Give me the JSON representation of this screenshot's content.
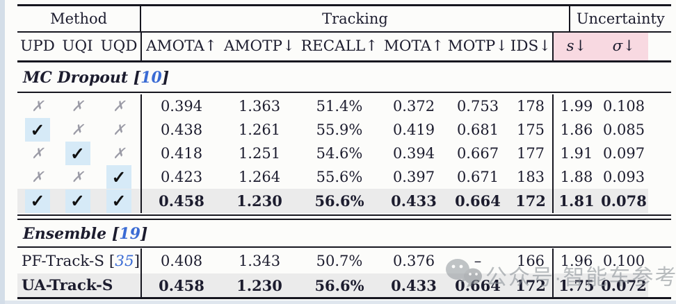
{
  "table": {
    "group_headers": {
      "method": "Method",
      "tracking": "Tracking",
      "uncertainty": "Uncertainty"
    },
    "columns": [
      "UPD",
      "UQI",
      "UQD",
      "AMOTA↑",
      "AMOTP↓",
      "RECALL↑",
      "MOTA↑",
      "MOTP↓",
      "IDS↓",
      "s↓",
      "σ↓"
    ],
    "sections": [
      {
        "label": "MC Dropout",
        "citation_open": "[",
        "citation_num": "10",
        "citation_close": "]",
        "rows": [
          {
            "marks": [
              false,
              false,
              false
            ],
            "values": [
              "0.394",
              "1.363",
              "51.4%",
              "0.372",
              "0.753",
              "178",
              "1.99",
              "0.108"
            ],
            "bold": false,
            "highlight": false
          },
          {
            "marks": [
              true,
              false,
              false
            ],
            "values": [
              "0.438",
              "1.261",
              "55.9%",
              "0.419",
              "0.681",
              "175",
              "1.86",
              "0.085"
            ],
            "bold": false,
            "highlight": false
          },
          {
            "marks": [
              false,
              true,
              false
            ],
            "values": [
              "0.418",
              "1.251",
              "54.6%",
              "0.394",
              "0.667",
              "177",
              "1.91",
              "0.097"
            ],
            "bold": false,
            "highlight": false
          },
          {
            "marks": [
              false,
              false,
              true
            ],
            "values": [
              "0.423",
              "1.264",
              "55.6%",
              "0.397",
              "0.671",
              "183",
              "1.88",
              "0.093"
            ],
            "bold": false,
            "highlight": false
          },
          {
            "marks": [
              true,
              true,
              true
            ],
            "values": [
              "0.458",
              "1.230",
              "56.6%",
              "0.433",
              "0.664",
              "172",
              "1.81",
              "0.078"
            ],
            "bold": true,
            "highlight": true
          }
        ]
      },
      {
        "label": "Ensemble",
        "citation_open": "[",
        "citation_num": "19",
        "citation_close": "]",
        "rows": [
          {
            "method": "PF-Track-S",
            "method_citation_num": "35",
            "values": [
              "0.408",
              "1.343",
              "50.7%",
              "0.376",
              "–",
              "166",
              "1.96",
              "0.100"
            ],
            "bold": false,
            "highlight": false
          },
          {
            "method": "UA-Track-S",
            "values": [
              "0.458",
              "1.230",
              "56.6%",
              "0.433",
              "0.664",
              "172",
              "1.75",
              "0.072"
            ],
            "bold": true,
            "highlight": true
          }
        ]
      }
    ]
  },
  "marks_legend": {
    "check_symbol": "✓",
    "cross_symbol": "✗"
  },
  "watermark": {
    "text": "公众号·智能车参考",
    "icon": "wechat-icon"
  },
  "colors": {
    "accent_pink": "#f8d9e1",
    "check_highlight_blue": "#d6eaf7",
    "row_highlight_gray": "#ebebeb",
    "citation_blue": "#3a6bd4",
    "rule_black": "#16161f"
  }
}
